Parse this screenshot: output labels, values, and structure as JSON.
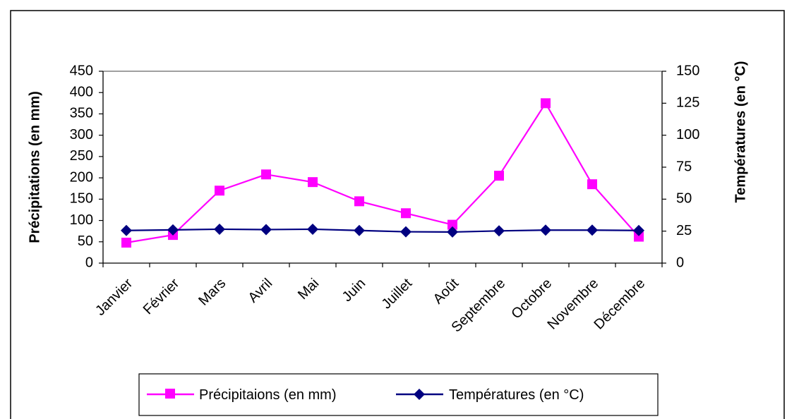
{
  "chart_data": {
    "type": "line",
    "title": "",
    "categories": [
      "Janvier",
      "Février",
      "Mars",
      "Avril",
      "Mai",
      "Juin",
      "Juillet",
      "Août",
      "Septembre",
      "Octobre",
      "Novembre",
      "Décembre"
    ],
    "y_left": {
      "label": "Précipitations (en mm)",
      "ylim": [
        0,
        450
      ],
      "ticks": [
        0,
        50,
        100,
        150,
        200,
        250,
        300,
        350,
        400,
        450
      ]
    },
    "y_right": {
      "label": "Températures (en °C)",
      "ylim": [
        0,
        150
      ],
      "ticks": [
        0,
        25,
        50,
        75,
        100,
        125,
        150
      ]
    },
    "series": [
      {
        "name": "Précipitaions (en mm)",
        "axis": "left",
        "color": "#ff00ff",
        "marker": "square",
        "values": [
          48,
          66,
          170,
          208,
          190,
          145,
          117,
          90,
          205,
          375,
          185,
          62
        ]
      },
      {
        "name": "Températures (en °C)",
        "axis": "right",
        "color": "#000080",
        "marker": "diamond",
        "values": [
          25.5,
          26,
          26.5,
          26.2,
          26.5,
          25.5,
          24.5,
          24.3,
          25.2,
          25.8,
          25.8,
          25.5
        ]
      }
    ],
    "grid": false,
    "legend": {
      "position": "bottom"
    }
  }
}
